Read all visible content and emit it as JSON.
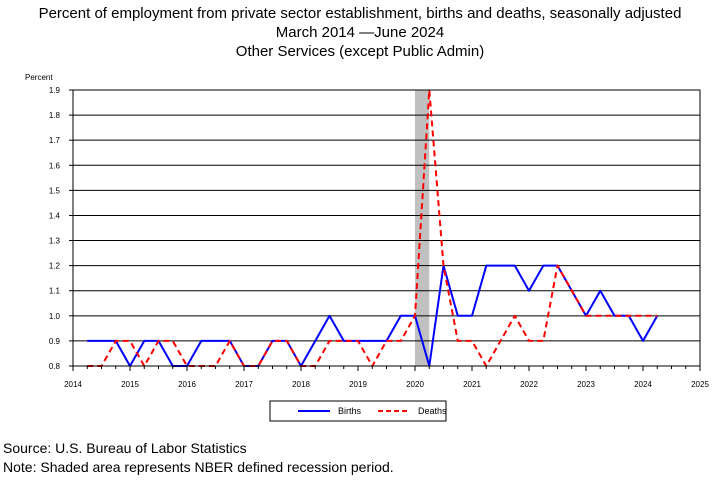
{
  "title_lines": [
    "Percent of employment from private sector establishment, births and deaths, seasonally adjusted",
    "March 2014 —June 2024",
    "Other Services (except Public Admin)"
  ],
  "footer": {
    "source": "Source: U.S. Bureau of Labor Statistics",
    "note": "Note: Shaded area represents NBER defined recession period."
  },
  "chart_data": {
    "type": "line",
    "title": "Percent of employment from private sector establishment, births and deaths, seasonally adjusted",
    "subtitle": "March 2014 —June 2024 / Other Services (except Public Admin)",
    "ylabel": "Percent",
    "xlabel": "",
    "xlim": [
      2014,
      2025
    ],
    "ylim": [
      0.8,
      1.9
    ],
    "x_ticks": [
      2014,
      2015,
      2016,
      2017,
      2018,
      2019,
      2020,
      2021,
      2022,
      2023,
      2024,
      2025
    ],
    "y_ticks": [
      "0.8",
      "0.9",
      "1.0",
      "1.1",
      "1.2",
      "1.3",
      "1.4",
      "1.5",
      "1.6",
      "1.7",
      "1.8",
      "1.9"
    ],
    "grid": "horizontal",
    "legend_position": "bottom-center",
    "recession_shade": {
      "from": 2020.0,
      "to": 2020.25,
      "color": "#c0c0c0"
    },
    "x": [
      2014.25,
      2014.5,
      2014.75,
      2015.0,
      2015.25,
      2015.5,
      2015.75,
      2016.0,
      2016.25,
      2016.5,
      2016.75,
      2017.0,
      2017.25,
      2017.5,
      2017.75,
      2018.0,
      2018.25,
      2018.5,
      2018.75,
      2019.0,
      2019.25,
      2019.5,
      2019.75,
      2020.0,
      2020.25,
      2020.5,
      2020.75,
      2021.0,
      2021.25,
      2021.5,
      2021.75,
      2022.0,
      2022.25,
      2022.5,
      2022.75,
      2023.0,
      2023.25,
      2023.5,
      2023.75,
      2024.0,
      2024.25
    ],
    "series": [
      {
        "name": "Births",
        "color": "#0000ff",
        "style": "solid",
        "values": [
          0.9,
          0.9,
          0.9,
          0.8,
          0.9,
          0.9,
          0.8,
          0.8,
          0.9,
          0.9,
          0.9,
          0.8,
          0.8,
          0.9,
          0.9,
          0.8,
          0.9,
          1.0,
          0.9,
          0.9,
          0.9,
          0.9,
          1.0,
          1.0,
          0.8,
          1.2,
          1.0,
          1.0,
          1.2,
          1.2,
          1.2,
          1.1,
          1.2,
          1.2,
          1.1,
          1.0,
          1.1,
          1.0,
          1.0,
          0.9,
          1.0
        ]
      },
      {
        "name": "Deaths",
        "color": "#ff0000",
        "style": "dashed",
        "values": [
          0.8,
          0.8,
          0.9,
          0.9,
          0.8,
          0.9,
          0.9,
          0.8,
          0.8,
          0.8,
          0.9,
          0.8,
          0.8,
          0.9,
          0.9,
          0.8,
          0.8,
          0.9,
          0.9,
          0.9,
          0.8,
          0.9,
          0.9,
          1.0,
          1.9,
          1.2,
          0.9,
          0.9,
          0.8,
          0.9,
          1.0,
          0.9,
          0.9,
          1.2,
          1.1,
          1.0,
          1.0,
          1.0,
          1.0,
          1.0,
          1.0
        ]
      }
    ]
  }
}
